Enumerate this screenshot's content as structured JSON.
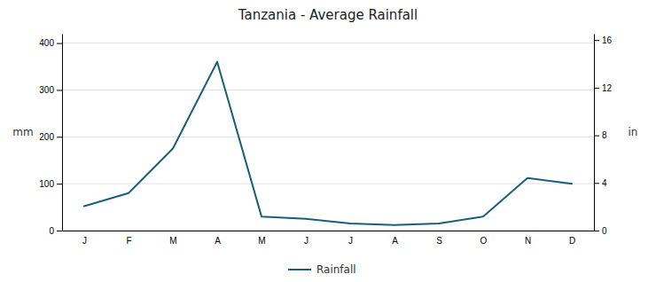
{
  "chart_data": {
    "type": "line",
    "title": "Tanzania - Average Rainfall",
    "categories": [
      "J",
      "F",
      "M",
      "A",
      "M",
      "J",
      "J",
      "A",
      "S",
      "O",
      "N",
      "D"
    ],
    "series": [
      {
        "name": "Rainfall",
        "color": "#1a5f7a",
        "values": [
          52,
          80,
          175,
          360,
          30,
          25,
          15,
          12,
          15,
          30,
          112,
          100
        ]
      }
    ],
    "ylabel": "mm",
    "y2label": "in",
    "ylim": [
      0,
      420
    ],
    "yticks": [
      0,
      100,
      200,
      300,
      400
    ],
    "y2lim": [
      0,
      16.535433070866144
    ],
    "y2ticks": [
      0,
      4,
      8,
      12,
      16
    ],
    "grid": true,
    "legend": "bottom"
  }
}
